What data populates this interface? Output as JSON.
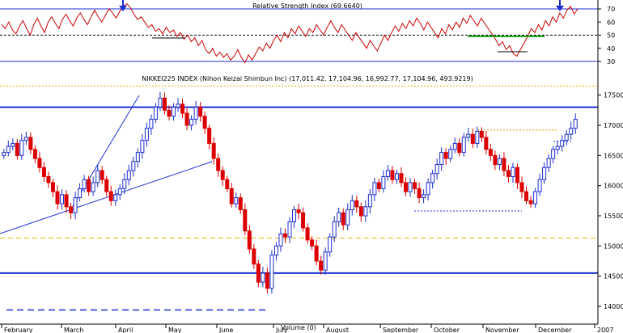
{
  "chart_data": [
    {
      "type": "line",
      "title": "Relative Strength Index (69.6640)",
      "y_ticks": [
        30,
        40,
        50,
        60,
        70
      ],
      "ylim": [
        25,
        76
      ],
      "reference_lines": [
        30,
        50,
        70
      ],
      "series": [
        {
          "values": [
            58,
            55,
            60,
            54,
            51,
            57,
            61,
            55,
            50,
            58,
            63,
            57,
            52,
            60,
            64,
            59,
            55,
            62,
            66,
            61,
            57,
            63,
            67,
            62,
            58,
            64,
            69,
            64,
            60,
            65,
            70,
            67,
            63,
            68,
            72,
            74,
            71,
            66,
            62,
            64,
            60,
            56,
            58,
            53,
            55,
            51,
            56,
            52,
            54,
            49,
            52,
            47,
            50,
            45,
            48,
            42,
            46,
            39,
            36,
            40,
            34,
            37,
            33,
            36,
            31,
            34,
            39,
            33,
            29,
            35,
            31,
            36,
            41,
            38,
            44,
            40,
            46,
            50,
            45,
            52,
            48,
            55,
            51,
            57,
            53,
            49,
            55,
            52,
            58,
            54,
            50,
            56,
            61,
            56,
            52,
            58,
            54,
            50,
            46,
            52,
            48,
            44,
            40,
            46,
            42,
            38,
            44,
            50,
            46,
            52,
            57,
            53,
            59,
            55,
            61,
            57,
            63,
            59,
            54,
            60,
            56,
            52,
            48,
            55,
            51,
            58,
            54,
            60,
            56,
            63,
            59,
            65,
            61,
            57,
            63,
            59,
            55,
            51,
            47,
            42,
            45,
            39,
            42,
            36,
            34,
            39,
            44,
            49,
            55,
            52,
            58,
            54,
            61,
            57,
            64,
            60,
            67,
            63,
            69,
            72,
            66,
            70
          ]
        }
      ]
    },
    {
      "type": "candlestick",
      "title": "NIKKEI225 INDEX (Nihon Keizai Shimbun Inc) (17,011.42, 17,104.96, 16,992.77, 17,104.96, 493.9219)",
      "y_ticks": [
        14000,
        14500,
        15000,
        15500,
        16000,
        16500,
        17000,
        17500
      ],
      "ylim": [
        13800,
        17800
      ],
      "x_labels": [
        "February",
        "March",
        "April",
        "May",
        "June",
        "July",
        "August",
        "September",
        "October",
        "November",
        "December",
        "2007"
      ],
      "volume_label": "Volume (0)",
      "horizontal_levels": [
        17300,
        14550
      ],
      "dashed_levels": [
        17650,
        15130,
        13940
      ],
      "series": [
        {
          "close": [
            16550,
            16650,
            16700,
            16500,
            16750,
            16800,
            16600,
            16450,
            16300,
            16150,
            16050,
            15900,
            15700,
            15850,
            15650,
            15550,
            15800,
            15950,
            16100,
            15900,
            16050,
            16250,
            16100,
            15900,
            15750,
            15850,
            15950,
            16100,
            16250,
            16400,
            16550,
            16750,
            16950,
            17100,
            17300,
            17450,
            17250,
            17150,
            17300,
            17350,
            17200,
            17000,
            17100,
            17300,
            17150,
            16950,
            16700,
            16450,
            16250,
            16100,
            15950,
            15700,
            15800,
            15600,
            15250,
            14950,
            14700,
            14400,
            14550,
            14300,
            14850,
            15000,
            15200,
            15150,
            15400,
            15600,
            15550,
            15300,
            15100,
            15000,
            14750,
            14600,
            14900,
            15150,
            15400,
            15550,
            15350,
            15600,
            15750,
            15650,
            15500,
            15650,
            15850,
            16050,
            15950,
            16150,
            16250,
            16100,
            16200,
            16050,
            15900,
            16050,
            15950,
            15800,
            15850,
            16050,
            16200,
            16350,
            16550,
            16450,
            16600,
            16700,
            16550,
            16800,
            16850,
            16700,
            16900,
            16800,
            16600,
            16500,
            16350,
            16450,
            16250,
            16150,
            16300,
            16050,
            15900,
            15750,
            15700,
            15900,
            16100,
            16300,
            16450,
            16600,
            16650,
            16750,
            16850,
            16950,
            17100
          ]
        }
      ]
    }
  ]
}
